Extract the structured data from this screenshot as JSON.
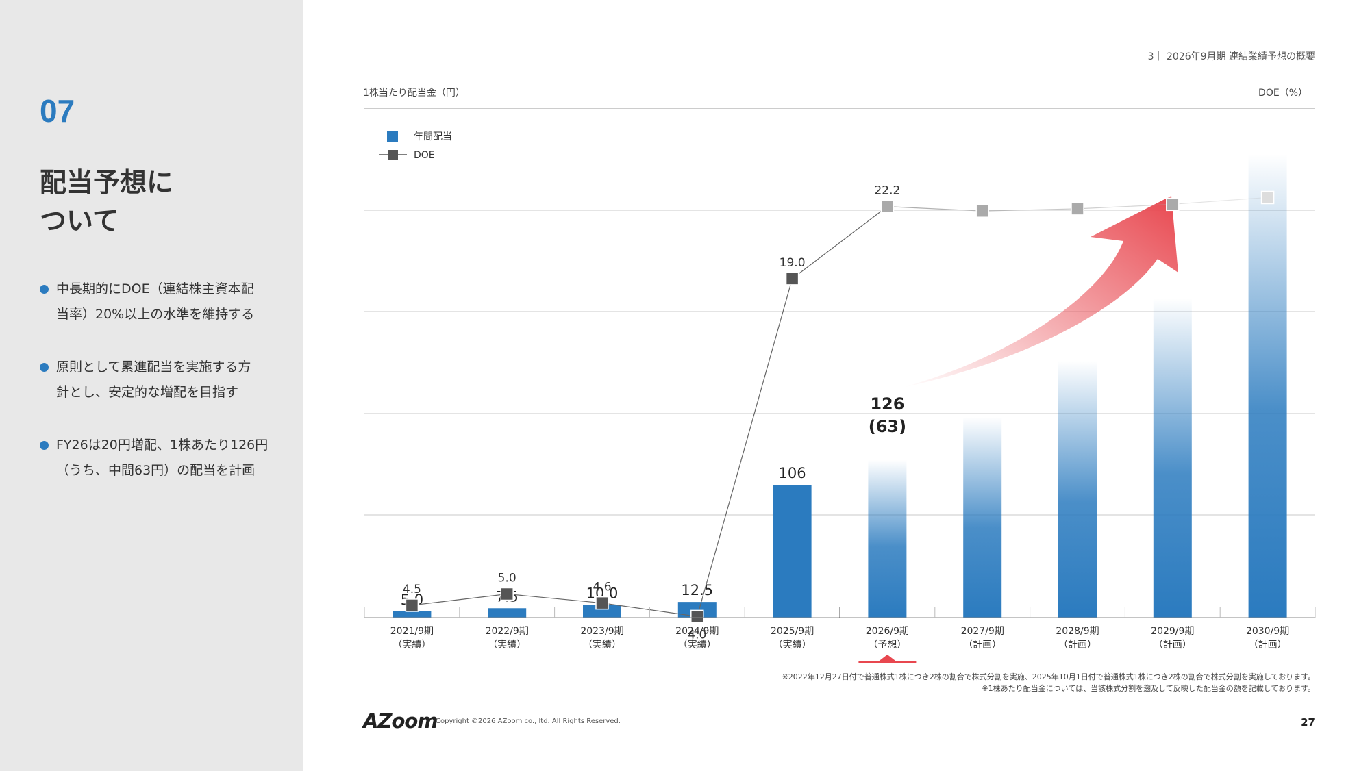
{
  "sidebar": {
    "section_number": "07",
    "title_line1": "配当予想に",
    "title_line2": "ついて",
    "bullets": [
      {
        "line1": "中長期的にDOE（連結株主資本配",
        "line2": "当率）20%以上の水準を維持する"
      },
      {
        "line1": "原則として累進配当を実施する方",
        "line2": "針とし、安定的な増配を目指す"
      },
      {
        "line1": "FY26は20円増配、1株あたり126円",
        "line2": "（うち、中間63円）の配当を計画"
      }
    ]
  },
  "header": {
    "page_title": "3｜ 2026年9月期 連結業績予想の概要"
  },
  "chart_data": {
    "type": "bar",
    "categories": [
      "2021/9期",
      "2022/9期",
      "2023/9期",
      "2024/9期",
      "2025/9期",
      "2026/9期",
      "2027/9期",
      "2028/9期",
      "2029/9期",
      "2030/9期"
    ],
    "category_notes": [
      "（実績）",
      "（実績）",
      "（実績）",
      "（実績）",
      "（実績）",
      "（予想）",
      "（計画）",
      "（計画）",
      "（計画）",
      "（計画）"
    ],
    "ylabel": "1株当たり配当金（円）",
    "y2label": "DOE（%）",
    "legend_position": "top-left",
    "grid": true,
    "series": [
      {
        "name": "年間配当",
        "kind": "bar",
        "color": "#2b7bbf",
        "values": [
          5.0,
          7.5,
          10.0,
          12.5,
          106,
          126,
          null,
          null,
          null,
          null
        ],
        "labels": [
          "5.0",
          "7.5",
          "10.0",
          "12.5",
          "106",
          "126",
          "",
          "",
          "",
          ""
        ],
        "interim_label": "(63)",
        "plan_bar_levels": [
          126,
          160,
          205,
          255,
          370
        ]
      },
      {
        "name": "DOE",
        "kind": "line",
        "color": "#555555",
        "values": [
          4.5,
          5.0,
          4.6,
          4.0,
          19.0,
          22.2,
          22.0,
          22.1,
          22.3,
          22.6
        ],
        "labels": [
          "4.5",
          "5.0",
          "4.6",
          "4.0",
          "19.0",
          "22.2",
          "",
          "",
          "",
          ""
        ]
      }
    ],
    "highlight_category": "2026/9期",
    "arrow_color": "#e8474f"
  },
  "footnotes": [
    "※2022年12月27日付で普通株式1株につき2株の割合で株式分割を実施、2025年10月1日付で普通株式1株につき2株の割合で株式分割を実施しております。",
    "※1株あたり配当金については、当該株式分割を遡及して反映した配当金の額を記載しております。"
  ],
  "footer": {
    "logo": "AZoom",
    "copyright": "Copyright ©2026 AZoom co., ltd. All Rights Reserved.",
    "page_number": "27"
  }
}
